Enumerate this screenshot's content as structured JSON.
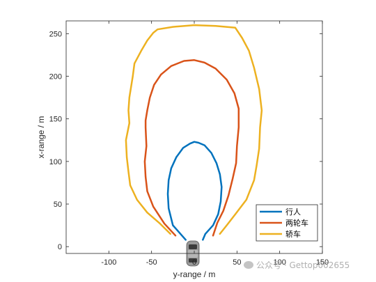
{
  "chart_data": {
    "type": "line",
    "xlabel": "y-range / m",
    "ylabel": "x-range / m",
    "xlim": [
      -150,
      150
    ],
    "ylim": [
      -8,
      265
    ],
    "xticks": [
      -100,
      -50,
      0,
      50,
      100,
      150
    ],
    "yticks": [
      0,
      50,
      100,
      150,
      200,
      250
    ],
    "legend_position": "bottom-right",
    "series": [
      {
        "name": "行人",
        "color": "#0072BD",
        "points": [
          [
            -10,
            8
          ],
          [
            -25,
            25
          ],
          [
            -30,
            45
          ],
          [
            -31,
            62
          ],
          [
            -30,
            78
          ],
          [
            -27,
            92
          ],
          [
            -21,
            105
          ],
          [
            -13,
            116
          ],
          [
            -5,
            121
          ],
          [
            0,
            123
          ],
          [
            5,
            122
          ],
          [
            12,
            119
          ],
          [
            20,
            110
          ],
          [
            26,
            98
          ],
          [
            30,
            85
          ],
          [
            32,
            70
          ],
          [
            31,
            53
          ],
          [
            28,
            38
          ],
          [
            22,
            25
          ],
          [
            13,
            15
          ],
          [
            10,
            8
          ]
        ]
      },
      {
        "name": "两轮车",
        "color": "#D95319",
        "points": [
          [
            -22,
            13
          ],
          [
            -35,
            27
          ],
          [
            -48,
            47
          ],
          [
            -55,
            65
          ],
          [
            -57,
            82
          ],
          [
            -58,
            100
          ],
          [
            -56,
            118
          ],
          [
            -57,
            140
          ],
          [
            -57,
            148
          ],
          [
            -55,
            160
          ],
          [
            -52,
            175
          ],
          [
            -47,
            190
          ],
          [
            -39,
            202
          ],
          [
            -27,
            212
          ],
          [
            -12,
            218
          ],
          [
            0,
            219
          ],
          [
            12,
            216
          ],
          [
            25,
            209
          ],
          [
            38,
            196
          ],
          [
            47,
            180
          ],
          [
            52,
            162
          ],
          [
            52,
            140
          ],
          [
            50,
            118
          ],
          [
            49,
            98
          ],
          [
            45,
            80
          ],
          [
            40,
            60
          ],
          [
            34,
            42
          ],
          [
            27,
            28
          ],
          [
            22,
            13
          ]
        ]
      },
      {
        "name": "轿车",
        "color": "#EDB120",
        "points": [
          [
            -28,
            15
          ],
          [
            -40,
            27
          ],
          [
            -55,
            40
          ],
          [
            -67,
            55
          ],
          [
            -75,
            72
          ],
          [
            -77,
            88
          ],
          [
            -79,
            105
          ],
          [
            -80,
            125
          ],
          [
            -76,
            145
          ],
          [
            -77,
            160
          ],
          [
            -76,
            175
          ],
          [
            -72,
            200
          ],
          [
            -70,
            215
          ],
          [
            -62,
            230
          ],
          [
            -55,
            242
          ],
          [
            -48,
            251
          ],
          [
            -43,
            255
          ],
          [
            -25,
            258
          ],
          [
            0,
            260
          ],
          [
            25,
            259
          ],
          [
            48,
            257
          ],
          [
            56,
            245
          ],
          [
            64,
            230
          ],
          [
            70,
            210
          ],
          [
            76,
            185
          ],
          [
            79,
            160
          ],
          [
            77,
            140
          ],
          [
            76,
            115
          ],
          [
            73,
            95
          ],
          [
            70,
            78
          ],
          [
            61,
            55
          ],
          [
            48,
            38
          ],
          [
            38,
            25
          ],
          [
            30,
            15
          ]
        ]
      }
    ]
  },
  "watermark": "公众号 · Gettop002655",
  "icons": {
    "vehicle": "car-icon",
    "watermark": "wechat-icon"
  }
}
